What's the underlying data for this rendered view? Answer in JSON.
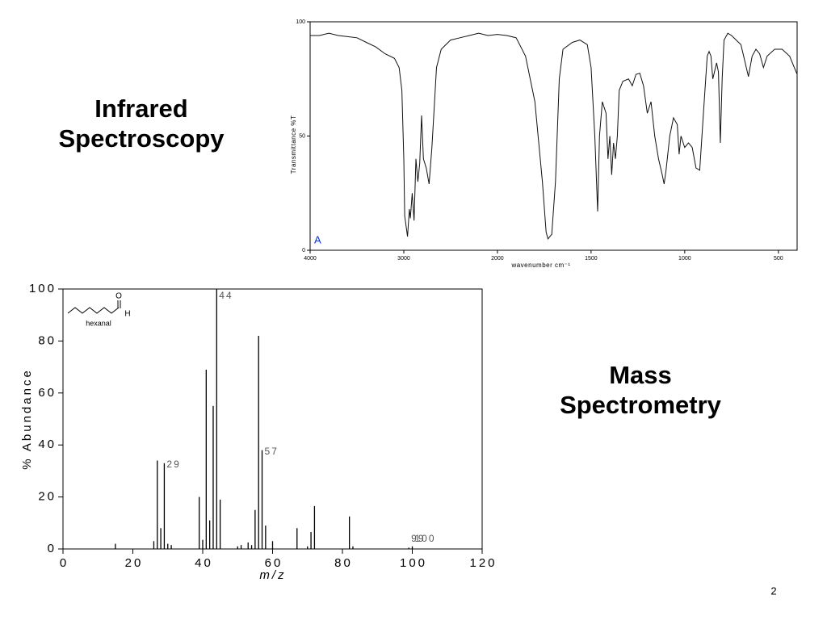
{
  "slide": {
    "headings": [
      "Infrared Spectroscopy",
      "Mass Spectrometry"
    ],
    "page_number": "2",
    "structure": {
      "name": "hexanal",
      "atoms": [
        "O",
        "H"
      ]
    }
  },
  "chart_data": [
    {
      "type": "line",
      "xlabel": "wavenumber cm⁻¹",
      "ylabel": "Transmittance %T",
      "annotation": "A",
      "annotation_color": "#1030d0",
      "x": [
        4000,
        3900,
        3800,
        3700,
        3600,
        3500,
        3400,
        3300,
        3200,
        3100,
        3050,
        3020,
        3000,
        2990,
        2960,
        2940,
        2930,
        2910,
        2890,
        2870,
        2850,
        2830,
        2810,
        2790,
        2760,
        2730,
        2700,
        2650,
        2600,
        2500,
        2400,
        2300,
        2200,
        2100,
        2000,
        1950,
        1900,
        1850,
        1800,
        1760,
        1740,
        1730,
        1710,
        1690,
        1670,
        1650,
        1600,
        1560,
        1520,
        1500,
        1480,
        1465,
        1455,
        1440,
        1420,
        1410,
        1400,
        1390,
        1380,
        1370,
        1360,
        1350,
        1330,
        1300,
        1280,
        1260,
        1240,
        1220,
        1200,
        1180,
        1160,
        1140,
        1120,
        1110,
        1100,
        1080,
        1060,
        1040,
        1030,
        1020,
        1000,
        980,
        960,
        940,
        920,
        900,
        880,
        870,
        860,
        850,
        830,
        820,
        810,
        800,
        790,
        770,
        750,
        700,
        680,
        660,
        640,
        620,
        600,
        580,
        560,
        520,
        480,
        440,
        400
      ],
      "series": [
        {
          "color": "#111111",
          "values": [
            94,
            94,
            95,
            94,
            93.5,
            93,
            91,
            89,
            86,
            84,
            80,
            70,
            40,
            15,
            6,
            18,
            14,
            25,
            13,
            40,
            30,
            38,
            59,
            40,
            36,
            29,
            45,
            80,
            88,
            92,
            93,
            94,
            95,
            94,
            94.5,
            94,
            93,
            85,
            65,
            30,
            8,
            5,
            7,
            30,
            75,
            88,
            91,
            92,
            90,
            80,
            50,
            17,
            50,
            65,
            60,
            40,
            50,
            33,
            47,
            40,
            50,
            70,
            74,
            75,
            72,
            77,
            77.5,
            72,
            60,
            65,
            50,
            40,
            33,
            29,
            35,
            50,
            58,
            55,
            42,
            50,
            45,
            47,
            45,
            36,
            35,
            60,
            85,
            87,
            85,
            75,
            82,
            78,
            47,
            75,
            92,
            95,
            94,
            90,
            83,
            76,
            85,
            88,
            86,
            80,
            85,
            88,
            88,
            85,
            77
          ]
        }
      ],
      "xlim": [
        4000,
        400
      ],
      "xticks": [
        4000,
        3000,
        2000,
        1500,
        1000,
        500
      ],
      "ylim": [
        0,
        100
      ],
      "yticks": [
        0,
        50,
        100
      ]
    },
    {
      "type": "bar",
      "xlabel": "m/z",
      "ylabel": "% Abundance",
      "color": "#000000",
      "label_color": "#555555",
      "x": [
        15,
        26,
        27,
        28,
        29,
        30,
        31,
        39,
        40,
        41,
        42,
        43,
        44,
        45,
        50,
        51,
        53,
        54,
        55,
        56,
        57,
        58,
        60,
        67,
        70,
        71,
        72,
        82,
        83,
        99,
        100
      ],
      "values": [
        2,
        3,
        34,
        8,
        33,
        2,
        1.5,
        20,
        3.5,
        69,
        11,
        55,
        100,
        19,
        1,
        1.5,
        2.5,
        1.5,
        15,
        82,
        38,
        9,
        3,
        8,
        1,
        6.5,
        16.5,
        12.5,
        1,
        0.5,
        1
      ],
      "labeled_peaks": [
        44,
        57,
        29,
        99,
        100
      ],
      "xlim": [
        0,
        120
      ],
      "xticks": [
        0,
        20,
        40,
        60,
        80,
        100,
        120
      ],
      "ylim": [
        0,
        100
      ],
      "yticks": [
        0,
        20,
        40,
        60,
        80,
        100
      ]
    }
  ]
}
